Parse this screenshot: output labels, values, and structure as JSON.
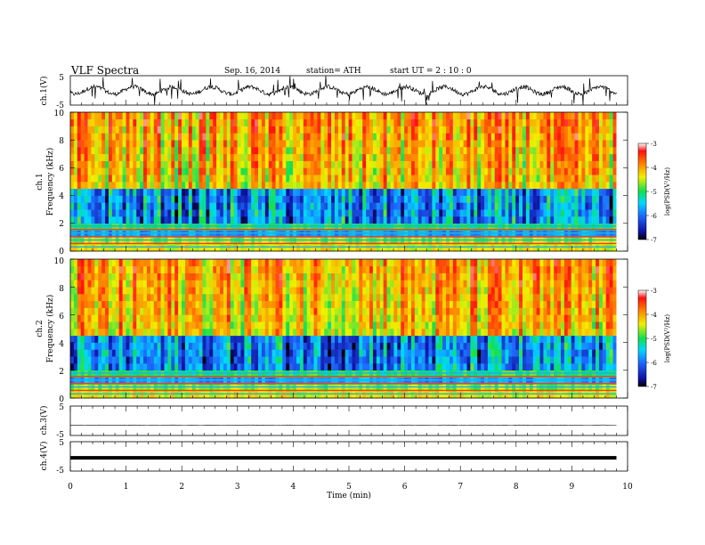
{
  "header": {
    "title": "VLF  Spectra",
    "date": "Sep. 16, 2014",
    "station": "station= ATH",
    "start": "start  UT  =   2  : 10 : 0"
  },
  "colors": {
    "spectrogram_low": "#1a1aa8",
    "spectrogram_mid": "#34c85a",
    "spectrogram_high": "#d82418",
    "trace": "#000000"
  },
  "chart_data": [
    {
      "type": "line",
      "name": "ch1-waveform",
      "ylabel": "ch.1(V)",
      "yticks": [
        "5",
        "-5"
      ],
      "ylim": [
        -5,
        5
      ],
      "xlim": [
        0,
        10
      ],
      "x_data_end": 9.8,
      "baseline": 0,
      "amplitude": 3.5
    },
    {
      "type": "heatmap",
      "name": "ch1-spectrogram",
      "ylabel_top": "ch.1",
      "ylabel": "Frequency  (kHz)",
      "yticks": [
        "0",
        "2",
        "4",
        "6",
        "8",
        "10"
      ],
      "ylim": [
        0,
        10
      ],
      "xlim": [
        0,
        10
      ],
      "x_data_end": 9.8,
      "colorbar": {
        "label": "log(PSD(V²/Hz)",
        "ticks": [
          "-3",
          "-4",
          "-5",
          "-6",
          "-7"
        ],
        "range": [
          -7,
          -3
        ]
      }
    },
    {
      "type": "heatmap",
      "name": "ch2-spectrogram",
      "ylabel_top": "ch.2",
      "ylabel": "Frequency  (kHz)",
      "yticks": [
        "0",
        "2",
        "4",
        "6",
        "8",
        "10"
      ],
      "ylim": [
        0,
        10
      ],
      "xlim": [
        0,
        10
      ],
      "x_data_end": 9.8,
      "colorbar": {
        "label": "log(PSD(V²/Hz)",
        "ticks": [
          "-3",
          "-4",
          "-5",
          "-6",
          "-7"
        ],
        "range": [
          -7,
          -3
        ]
      }
    },
    {
      "type": "line",
      "name": "ch3-waveform",
      "ylabel": "ch.3(V)",
      "yticks": [
        "5",
        "-5"
      ],
      "ylim": [
        -5,
        5
      ],
      "xlim": [
        0,
        10
      ],
      "x_data_end": 9.8,
      "baseline": -1.5,
      "amplitude": 0.15
    },
    {
      "type": "line",
      "name": "ch4-waveform",
      "ylabel": "ch.4(V)",
      "yticks": [
        "5",
        "-5"
      ],
      "ylim": [
        -5,
        5
      ],
      "xlim": [
        0,
        10
      ],
      "x_data_end": 9.8,
      "baseline": -0.5,
      "amplitude": 0.25
    }
  ],
  "x_axis": {
    "label": "Time  (min)",
    "ticks": [
      "0",
      "1",
      "2",
      "3",
      "4",
      "5",
      "6",
      "7",
      "8",
      "9",
      "10"
    ],
    "range": [
      0,
      10
    ]
  }
}
